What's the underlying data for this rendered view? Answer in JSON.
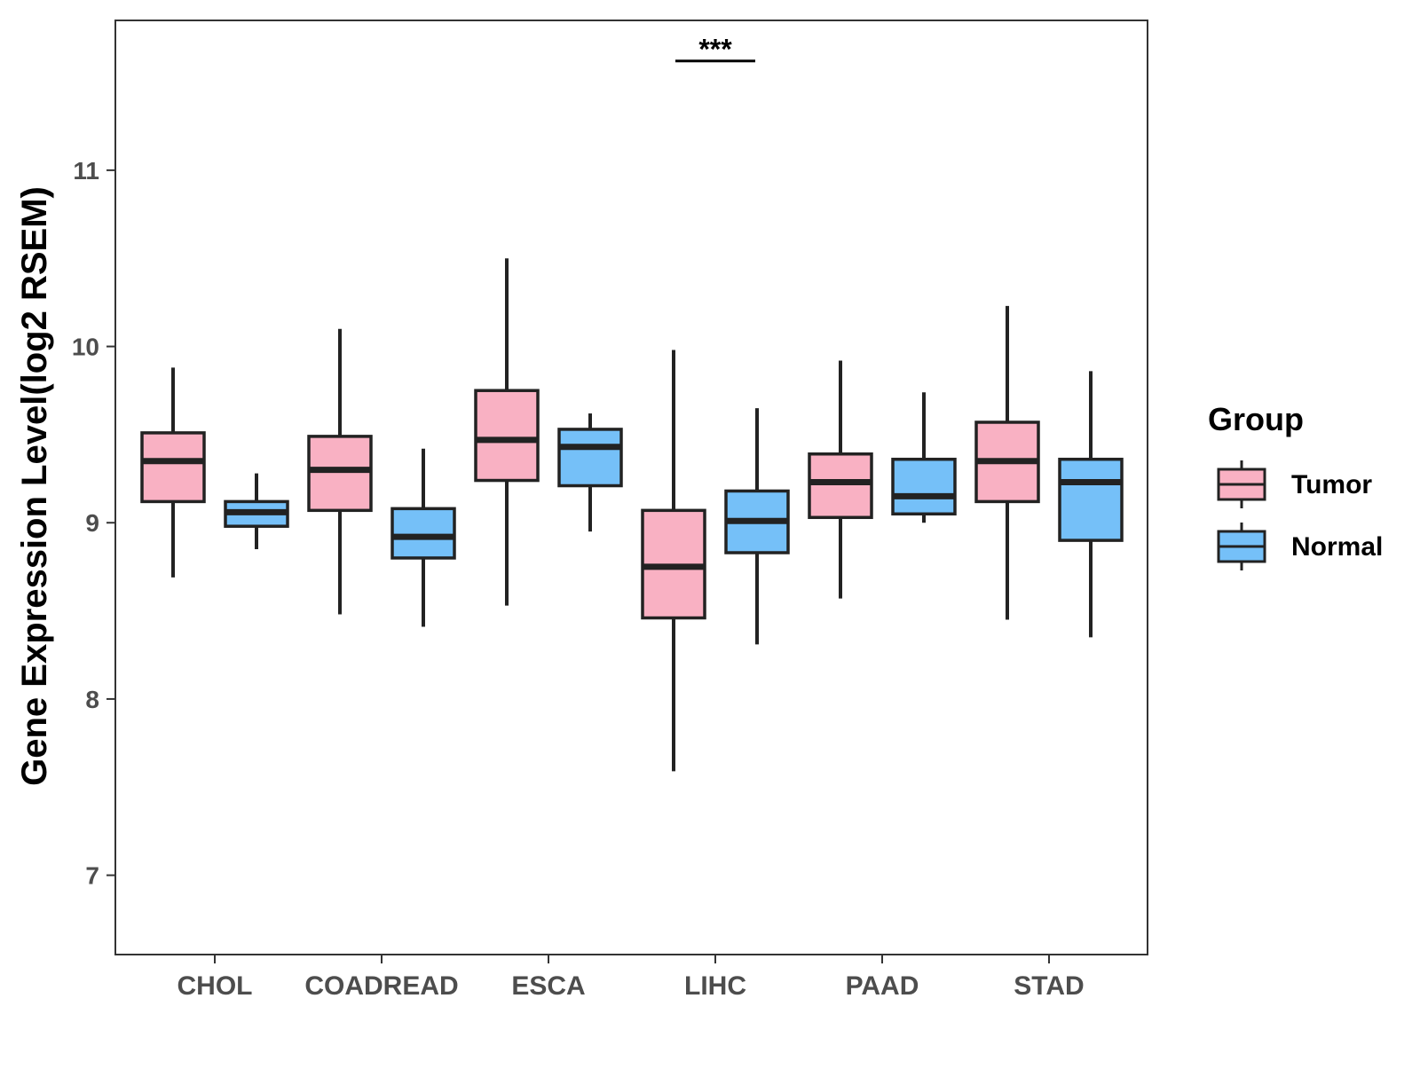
{
  "chart_data": {
    "type": "boxplot",
    "title": "",
    "xlabel": "",
    "ylabel": "Gene Expression Level(log2 RSEM)",
    "ylim": [
      6.55,
      11.85
    ],
    "yticks": [
      7,
      8,
      9,
      10,
      11
    ],
    "yticklabels": [
      "7",
      "8",
      "9",
      "10",
      "11"
    ],
    "categories": [
      "CHOL",
      "COADREAD",
      "ESCA",
      "LIHC",
      "PAAD",
      "STAD"
    ],
    "legend": {
      "title": "Group",
      "position": "right",
      "items": [
        {
          "label": "Tumor",
          "color": "#f9b1c3"
        },
        {
          "label": "Normal",
          "color": "#75c0f8"
        }
      ]
    },
    "series": [
      {
        "name": "Tumor",
        "color": "#f9b1c3",
        "boxes": [
          {
            "category": "CHOL",
            "min": 8.69,
            "q1": 9.12,
            "median": 9.35,
            "q3": 9.51,
            "max": 9.88
          },
          {
            "category": "COADREAD",
            "min": 8.48,
            "q1": 9.07,
            "median": 9.3,
            "q3": 9.49,
            "max": 10.1
          },
          {
            "category": "ESCA",
            "min": 8.53,
            "q1": 9.24,
            "median": 9.47,
            "q3": 9.75,
            "max": 10.5
          },
          {
            "category": "LIHC",
            "min": 7.59,
            "q1": 8.46,
            "median": 8.75,
            "q3": 9.07,
            "max": 9.98
          },
          {
            "category": "PAAD",
            "min": 8.57,
            "q1": 9.03,
            "median": 9.23,
            "q3": 9.39,
            "max": 9.92
          },
          {
            "category": "STAD",
            "min": 8.45,
            "q1": 9.12,
            "median": 9.35,
            "q3": 9.57,
            "max": 10.23
          }
        ]
      },
      {
        "name": "Normal",
        "color": "#75c0f8",
        "boxes": [
          {
            "category": "CHOL",
            "min": 8.85,
            "q1": 8.98,
            "median": 9.06,
            "q3": 9.12,
            "max": 9.28
          },
          {
            "category": "COADREAD",
            "min": 8.41,
            "q1": 8.8,
            "median": 8.92,
            "q3": 9.08,
            "max": 9.42
          },
          {
            "category": "ESCA",
            "min": 8.95,
            "q1": 9.21,
            "median": 9.43,
            "q3": 9.53,
            "max": 9.62
          },
          {
            "category": "LIHC",
            "min": 8.31,
            "q1": 8.83,
            "median": 9.01,
            "q3": 9.18,
            "max": 9.65
          },
          {
            "category": "PAAD",
            "min": 9.0,
            "q1": 9.05,
            "median": 9.15,
            "q3": 9.36,
            "max": 9.74
          },
          {
            "category": "STAD",
            "min": 8.35,
            "q1": 8.9,
            "median": 9.23,
            "q3": 9.36,
            "max": 9.86
          }
        ]
      }
    ],
    "annotations": [
      {
        "category": "LIHC",
        "text": "***",
        "y": 11.62
      }
    ]
  }
}
